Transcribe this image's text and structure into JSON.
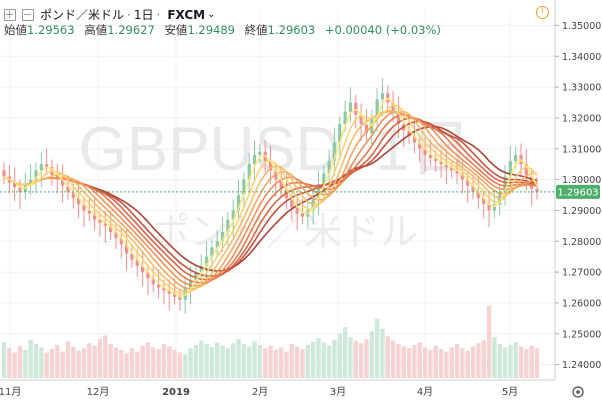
{
  "header": {
    "pair_jp": "ポンド／米ドル",
    "interval": "1日",
    "exchange": "FXCM",
    "open_label": "始値",
    "open_value": "1.29563",
    "high_label": "高値",
    "high_value": "1.29627",
    "low_label": "安値",
    "low_value": "1.29489",
    "close_label": "終値",
    "close_value": "1.29603",
    "change": "+0.00040 (+0.03%)",
    "warning_icon": "!"
  },
  "watermark": {
    "symbol": "GBPUSD, 1日",
    "name": "ポンド／米ドル"
  },
  "colors": {
    "up": "#8cc9a4",
    "down": "#ef8f8f",
    "price_badge": "#4caf6a",
    "ribbon": [
      "#a83a2c",
      "#c24a35",
      "#d65e3e",
      "#e37246",
      "#ec8a50",
      "#f2a15a",
      "#f7b864",
      "#fbd06d",
      "#fde77a"
    ]
  },
  "chart_data": {
    "type": "candlestick",
    "title": "GBPUSD, 1日",
    "ylim": [
      1.235,
      1.355
    ],
    "y_ticks": [
      "1.35000",
      "1.34000",
      "1.33000",
      "1.32000",
      "1.31000",
      "1.30000",
      "1.29000",
      "1.28000",
      "1.27000",
      "1.26000",
      "1.25000",
      "1.24000"
    ],
    "x_ticks": [
      "11月",
      "12月",
      "2019",
      "2月",
      "3月",
      "4月",
      "5月"
    ],
    "last_price": "1.29603",
    "closes": [
      1.301,
      1.299,
      1.2975,
      1.296,
      1.2985,
      1.3,
      1.303,
      1.305,
      1.304,
      1.3015,
      1.3,
      1.298,
      1.296,
      1.294,
      1.292,
      1.29,
      1.289,
      1.287,
      1.286,
      1.285,
      1.283,
      1.281,
      1.279,
      1.276,
      1.274,
      1.272,
      1.27,
      1.268,
      1.266,
      1.265,
      1.264,
      1.263,
      1.262,
      1.261,
      1.265,
      1.267,
      1.27,
      1.272,
      1.275,
      1.278,
      1.28,
      1.283,
      1.287,
      1.29,
      1.295,
      1.3,
      1.305,
      1.308,
      1.309,
      1.306,
      1.303,
      1.3,
      1.297,
      1.294,
      1.291,
      1.289,
      1.288,
      1.29,
      1.294,
      1.298,
      1.302,
      1.306,
      1.312,
      1.318,
      1.322,
      1.325,
      1.321,
      1.318,
      1.315,
      1.32,
      1.326,
      1.328,
      1.325,
      1.322,
      1.318,
      1.316,
      1.314,
      1.312,
      1.31,
      1.308,
      1.307,
      1.306,
      1.305,
      1.304,
      1.303,
      1.302,
      1.3,
      1.298,
      1.296,
      1.294,
      1.292,
      1.29,
      1.292,
      1.296,
      1.301,
      1.306,
      1.308,
      1.305,
      1.301,
      1.297,
      1.296
    ],
    "volume": [
      0.42,
      0.35,
      0.3,
      0.38,
      0.33,
      0.45,
      0.4,
      0.36,
      0.3,
      0.34,
      0.39,
      0.31,
      0.43,
      0.37,
      0.32,
      0.35,
      0.41,
      0.38,
      0.46,
      0.5,
      0.4,
      0.36,
      0.33,
      0.29,
      0.35,
      0.31,
      0.38,
      0.42,
      0.36,
      0.34,
      0.4,
      0.37,
      0.33,
      0.3,
      0.28,
      0.35,
      0.39,
      0.44,
      0.4,
      0.36,
      0.42,
      0.38,
      0.35,
      0.41,
      0.46,
      0.4,
      0.37,
      0.43,
      0.39,
      0.35,
      0.38,
      0.33,
      0.36,
      0.31,
      0.4,
      0.37,
      0.34,
      0.39,
      0.43,
      0.47,
      0.42,
      0.38,
      0.45,
      0.52,
      0.6,
      0.48,
      0.44,
      0.41,
      0.46,
      0.55,
      0.7,
      0.58,
      0.49,
      0.44,
      0.4,
      0.37,
      0.35,
      0.39,
      0.42,
      0.36,
      0.33,
      0.38,
      0.34,
      0.31,
      0.36,
      0.4,
      0.35,
      0.32,
      0.37,
      0.41,
      0.44,
      0.85,
      0.48,
      0.4,
      0.36,
      0.39,
      0.42,
      0.37,
      0.34,
      0.38,
      0.35
    ]
  }
}
